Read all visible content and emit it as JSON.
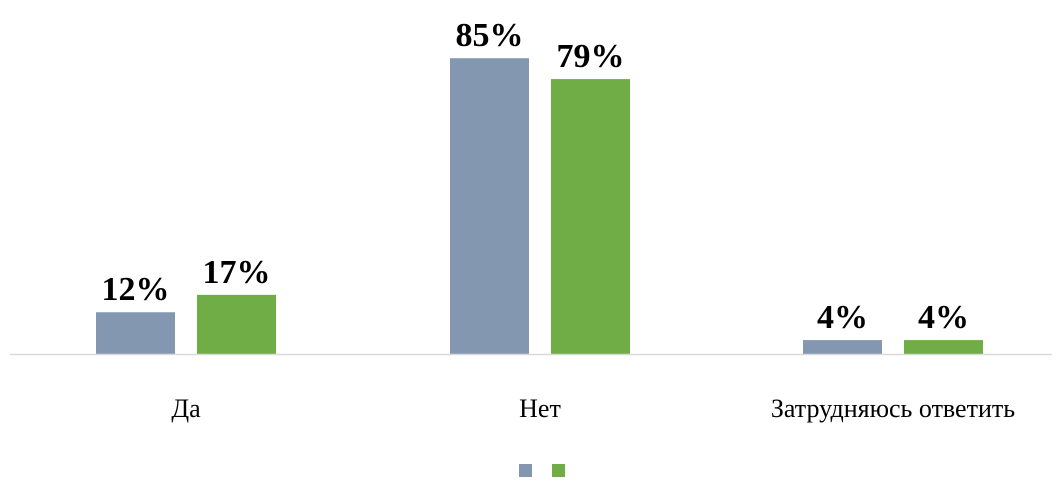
{
  "chart_data": {
    "type": "bar",
    "title": "",
    "categories": [
      "Да",
      "Нет",
      "Затрудняюсь ответить"
    ],
    "series": [
      {
        "color": "#8497b0",
        "values": [
          12,
          85,
          4
        ]
      },
      {
        "color": "#70ad47",
        "values": [
          17,
          79,
          4
        ]
      }
    ],
    "value_format": "percent",
    "ylim": [
      0,
      100
    ],
    "grid": false,
    "legend": {
      "position": "bottom"
    }
  }
}
